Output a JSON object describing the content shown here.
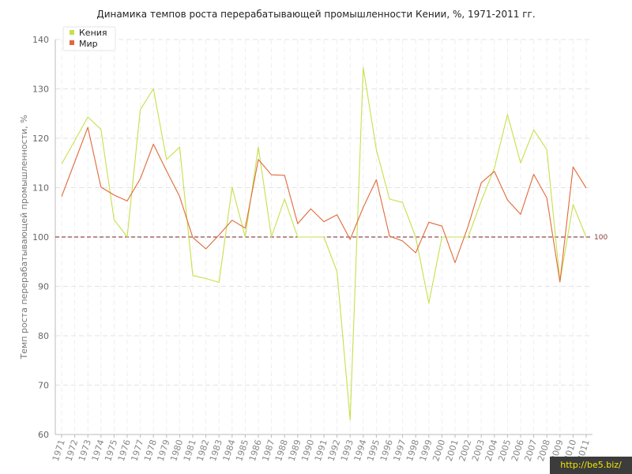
{
  "chart_data": {
    "type": "line",
    "title": "Динамика темпов роста перерабатывающей промышленности Кении, %, 1971-2011 гг.",
    "ylabel": "Темп роста перерабатывающей промышленности, %",
    "xlabel": "",
    "ylim": [
      60,
      140
    ],
    "yticks": [
      60,
      70,
      80,
      90,
      100,
      110,
      120,
      130,
      140
    ],
    "grid": true,
    "legend": "top-left",
    "reference_line": {
      "value": 100,
      "label": "100",
      "color": "#7a1e1e"
    },
    "x": [
      1971,
      1972,
      1973,
      1974,
      1975,
      1976,
      1977,
      1978,
      1979,
      1980,
      1981,
      1982,
      1983,
      1984,
      1985,
      1986,
      1987,
      1988,
      1989,
      1990,
      1991,
      1992,
      1993,
      1994,
      1995,
      1996,
      1997,
      1998,
      1999,
      2000,
      2001,
      2002,
      2003,
      2004,
      2005,
      2006,
      2007,
      2008,
      2009,
      2010,
      2011
    ],
    "series": [
      {
        "name": "Кения",
        "color": "#c6e04a",
        "values": [
          114.8,
          119.5,
          124.3,
          121.8,
          103.5,
          100.0,
          125.8,
          130.0,
          115.7,
          118.2,
          92.2,
          91.6,
          90.8,
          110.1,
          100.0,
          118.2,
          100.0,
          107.7,
          100.0,
          100.0,
          100.0,
          93.0,
          63.0,
          134.3,
          117.7,
          107.7,
          107.0,
          100.0,
          86.6,
          100.0,
          100.0,
          100.0,
          107.3,
          114.0,
          124.8,
          115.0,
          121.7,
          117.7,
          91.0,
          106.6,
          100.0
        ]
      },
      {
        "name": "Мир",
        "color": "#e0693a",
        "values": [
          108.2,
          115.2,
          122.2,
          110.1,
          108.5,
          107.3,
          111.8,
          118.8,
          113.4,
          108.2,
          99.9,
          97.6,
          100.4,
          103.4,
          101.8,
          115.7,
          112.6,
          112.5,
          102.7,
          105.7,
          103.1,
          104.5,
          99.5,
          106.0,
          111.6,
          100.2,
          99.2,
          96.8,
          103.0,
          102.2,
          94.8,
          102.2,
          111.0,
          113.3,
          107.5,
          104.6,
          112.7,
          107.9,
          90.9,
          114.2,
          109.9
        ]
      }
    ]
  },
  "watermark": "http://be5.biz/"
}
